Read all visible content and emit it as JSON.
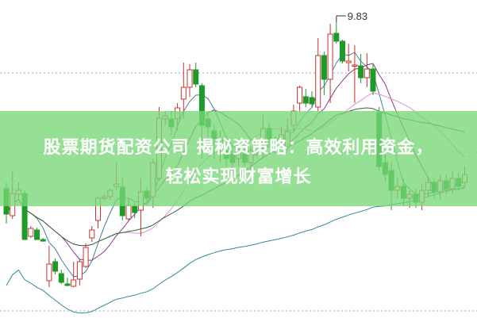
{
  "article": {
    "title_line1": "股票期货配资公司 揭秘资策略：高效利用资金，",
    "title_line2": "轻松实现财富增长"
  },
  "chart_data": {
    "type": "candlestick",
    "max_label": "9.83",
    "grid": "horizontal dotted",
    "colors": {
      "up": "#c83232",
      "down": "#1e9a28",
      "banner": "#78d778"
    },
    "moving_averages": [
      {
        "period": 5,
        "color": "#3f7f9a"
      },
      {
        "period": 10,
        "color": "#8a3a8a"
      },
      {
        "period": 20,
        "color": "#e08ee0"
      },
      {
        "period": 30,
        "color": "#2f6a2f"
      },
      {
        "period": 60,
        "color": "#2f8a9a"
      }
    ],
    "candles_ohlc": [
      [
        7.73,
        7.81,
        7.29,
        7.41
      ],
      [
        7.39,
        7.96,
        7.35,
        7.67
      ],
      [
        7.66,
        7.81,
        7.61,
        7.71
      ],
      [
        7.67,
        7.71,
        7.09,
        7.09
      ],
      [
        7.13,
        7.26,
        7.11,
        7.23
      ],
      [
        7.21,
        7.24,
        7.09,
        7.09
      ],
      [
        7.09,
        7.11,
        7.06,
        7.07
      ],
      [
        6.57,
        7.01,
        6.49,
        6.78
      ],
      [
        6.81,
        6.85,
        6.65,
        6.69
      ],
      [
        6.66,
        6.71,
        6.53,
        6.55
      ],
      [
        6.53,
        6.61,
        6.5,
        6.51
      ],
      [
        6.5,
        6.81,
        6.49,
        6.58
      ],
      [
        6.59,
        6.85,
        6.51,
        6.81
      ],
      [
        6.75,
        7.04,
        6.73,
        6.99
      ],
      [
        7.11,
        7.26,
        7.06,
        7.21
      ],
      [
        7.33,
        7.63,
        7.23,
        7.61
      ],
      [
        7.61,
        7.66,
        7.59,
        7.63
      ],
      [
        7.63,
        7.73,
        7.59,
        7.71
      ],
      [
        7.76,
        8.06,
        7.71,
        7.79
      ],
      [
        7.75,
        7.86,
        7.33,
        7.39
      ],
      [
        7.35,
        7.61,
        7.33,
        7.52
      ],
      [
        7.51,
        7.56,
        7.36,
        7.43
      ],
      [
        7.46,
        7.86,
        7.13,
        7.69
      ],
      [
        7.7,
        7.76,
        7.56,
        7.61
      ],
      [
        7.63,
        8.11,
        7.49,
        8.06
      ],
      [
        7.86,
        8.76,
        7.83,
        8.62
      ],
      [
        8.61,
        8.71,
        8.53,
        8.65
      ],
      [
        8.61,
        8.71,
        8.41,
        8.51
      ],
      [
        8.61,
        8.81,
        8.46,
        8.75
      ],
      [
        8.86,
        9.32,
        8.61,
        9.01
      ],
      [
        9.01,
        9.3,
        8.89,
        9.23
      ],
      [
        9.23,
        9.32,
        9.01,
        9.05
      ],
      [
        9.03,
        9.06,
        8.11,
        8.53
      ],
      [
        8.61,
        8.69,
        8.31,
        8.51
      ],
      [
        8.46,
        8.53,
        8.11,
        8.36
      ],
      [
        8.26,
        8.46,
        8.06,
        8.36
      ],
      [
        8.21,
        8.36,
        8.01,
        8.11
      ],
      [
        8.16,
        8.26,
        7.96,
        8.06
      ],
      [
        8.11,
        8.31,
        8.01,
        8.23
      ],
      [
        8.16,
        8.26,
        8.01,
        8.06
      ],
      [
        8.06,
        8.26,
        7.96,
        8.21
      ],
      [
        8.21,
        8.36,
        8.13,
        8.31
      ],
      [
        8.31,
        8.66,
        8.11,
        8.49
      ],
      [
        8.49,
        8.56,
        8.31,
        8.36
      ],
      [
        8.35,
        8.39,
        8.26,
        8.31
      ],
      [
        8.31,
        8.51,
        8.23,
        8.41
      ],
      [
        8.26,
        8.61,
        8.21,
        8.45
      ],
      [
        8.53,
        8.79,
        8.46,
        8.71
      ],
      [
        8.81,
        9.03,
        8.71,
        9.01
      ],
      [
        8.89,
        8.99,
        8.76,
        8.81
      ],
      [
        8.88,
        8.96,
        8.76,
        8.8
      ],
      [
        8.76,
        9.63,
        8.71,
        9.41
      ],
      [
        9.41,
        9.46,
        8.91,
        9.11
      ],
      [
        9.11,
        9.81,
        8.81,
        9.68
      ],
      [
        9.69,
        9.83,
        9.56,
        9.59
      ],
      [
        9.59,
        9.61,
        9.31,
        9.34
      ],
      [
        9.32,
        9.56,
        9.21,
        9.34
      ],
      [
        9.28,
        9.54,
        8.81,
        9.29
      ],
      [
        9.28,
        9.43,
        9.06,
        9.13
      ],
      [
        9.13,
        9.44,
        9.01,
        9.24
      ],
      [
        9.24,
        9.31,
        8.91,
        8.96
      ],
      [
        8.69,
        8.76,
        7.96,
        8.01
      ],
      [
        8.06,
        8.16,
        7.81,
        7.91
      ],
      [
        7.96,
        8.06,
        7.46,
        7.71
      ],
      [
        7.71,
        7.86,
        7.61,
        7.76
      ],
      [
        7.76,
        7.86,
        7.51,
        7.61
      ],
      [
        7.61,
        7.71,
        7.49,
        7.66
      ],
      [
        7.66,
        7.73,
        7.49,
        7.56
      ],
      [
        7.56,
        7.79,
        7.46,
        7.71
      ],
      [
        7.71,
        7.89,
        7.63,
        7.81
      ],
      [
        7.81,
        7.86,
        7.61,
        7.69
      ],
      [
        7.69,
        7.91,
        7.59,
        7.83
      ],
      [
        7.83,
        7.91,
        7.66,
        7.73
      ],
      [
        7.73,
        7.96,
        7.67,
        7.86
      ],
      [
        7.86,
        7.93,
        7.71,
        7.76
      ],
      [
        7.81,
        8.01,
        7.75,
        7.91
      ]
    ]
  }
}
